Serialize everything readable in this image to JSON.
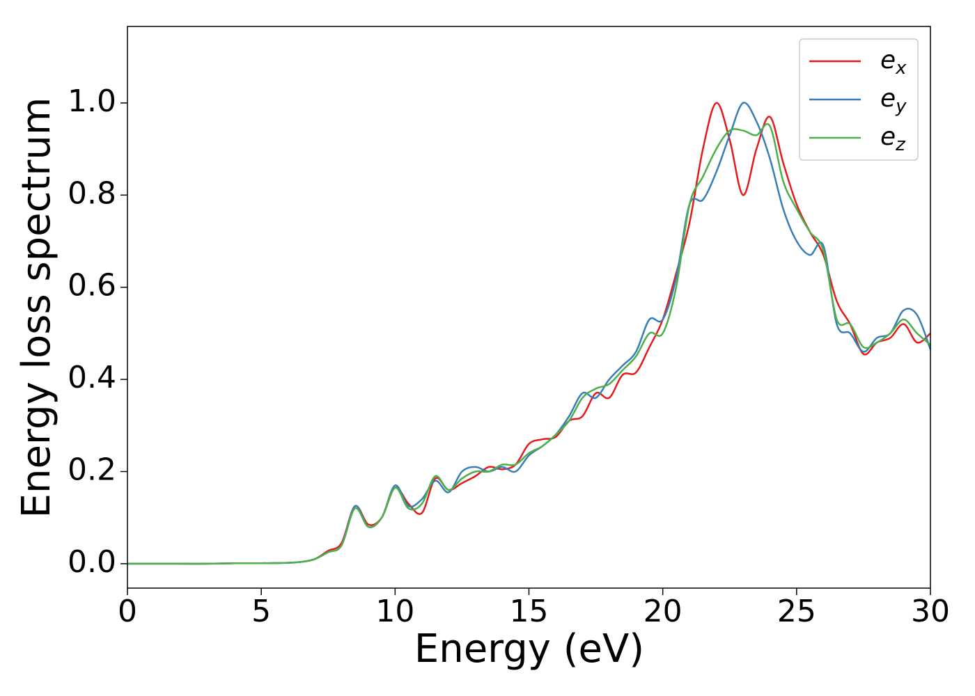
{
  "chart_data": {
    "type": "line",
    "xlabel": "Energy (eV)",
    "ylabel": "Energy loss spectrum",
    "x": [
      0,
      1,
      2,
      3,
      4,
      5,
      6,
      6.5,
      7,
      7.5,
      8,
      8.5,
      9,
      9.5,
      10,
      10.5,
      11,
      11.5,
      12,
      12.5,
      13,
      13.5,
      14,
      14.5,
      15,
      15.5,
      16,
      16.5,
      17,
      17.5,
      18,
      18.5,
      19,
      19.5,
      20,
      20.5,
      21,
      21.5,
      22,
      22.5,
      23,
      23.5,
      24,
      24.5,
      25,
      25.5,
      26,
      26.5,
      27,
      27.5,
      28,
      28.5,
      29,
      29.5,
      30
    ],
    "series": [
      {
        "name": "e_x",
        "color": "#e41a1c",
        "values": [
          0,
          0,
          0,
          0,
          0.001,
          0.001,
          0.002,
          0.004,
          0.01,
          0.028,
          0.045,
          0.125,
          0.085,
          0.1,
          0.165,
          0.13,
          0.11,
          0.185,
          0.16,
          0.175,
          0.19,
          0.21,
          0.205,
          0.215,
          0.26,
          0.27,
          0.275,
          0.31,
          0.32,
          0.37,
          0.36,
          0.41,
          0.415,
          0.47,
          0.53,
          0.63,
          0.74,
          0.9,
          1.0,
          0.92,
          0.8,
          0.9,
          0.97,
          0.87,
          0.78,
          0.72,
          0.67,
          0.57,
          0.52,
          0.455,
          0.48,
          0.49,
          0.52,
          0.48,
          0.5
        ]
      },
      {
        "name": "e_y",
        "color": "#377eb8",
        "values": [
          0,
          0,
          0,
          0,
          0.001,
          0.001,
          0.002,
          0.004,
          0.01,
          0.025,
          0.04,
          0.125,
          0.08,
          0.1,
          0.17,
          0.125,
          0.14,
          0.18,
          0.155,
          0.2,
          0.21,
          0.2,
          0.21,
          0.2,
          0.235,
          0.255,
          0.28,
          0.32,
          0.37,
          0.36,
          0.4,
          0.43,
          0.46,
          0.53,
          0.53,
          0.62,
          0.78,
          0.79,
          0.85,
          0.93,
          1.0,
          0.96,
          0.88,
          0.77,
          0.7,
          0.67,
          0.69,
          0.52,
          0.5,
          0.46,
          0.49,
          0.5,
          0.55,
          0.54,
          0.465
        ]
      },
      {
        "name": "e_z",
        "color": "#4daf4a",
        "values": [
          0,
          0,
          0,
          0,
          0.001,
          0.001,
          0.002,
          0.004,
          0.01,
          0.025,
          0.04,
          0.12,
          0.08,
          0.1,
          0.165,
          0.12,
          0.13,
          0.19,
          0.16,
          0.185,
          0.2,
          0.2,
          0.215,
          0.215,
          0.24,
          0.255,
          0.28,
          0.31,
          0.36,
          0.38,
          0.39,
          0.42,
          0.45,
          0.5,
          0.5,
          0.6,
          0.78,
          0.84,
          0.9,
          0.94,
          0.94,
          0.93,
          0.95,
          0.83,
          0.77,
          0.72,
          0.68,
          0.53,
          0.52,
          0.47,
          0.48,
          0.5,
          0.53,
          0.5,
          0.475
        ]
      }
    ],
    "xlim": [
      0,
      30
    ],
    "xticks": [
      0,
      5,
      10,
      15,
      20,
      25,
      30
    ],
    "ylim": [
      -0.053,
      1.166
    ],
    "yticks": [
      {
        "value": 0,
        "label": "0.0"
      },
      {
        "value": 0.2,
        "label": "0.2"
      },
      {
        "value": 0.4,
        "label": "0.4"
      },
      {
        "value": 0.6,
        "label": "0.6"
      },
      {
        "value": 0.8,
        "label": "0.8"
      },
      {
        "value": 1.0,
        "label": "1.0"
      }
    ],
    "grid": false,
    "legend": "upper right"
  }
}
